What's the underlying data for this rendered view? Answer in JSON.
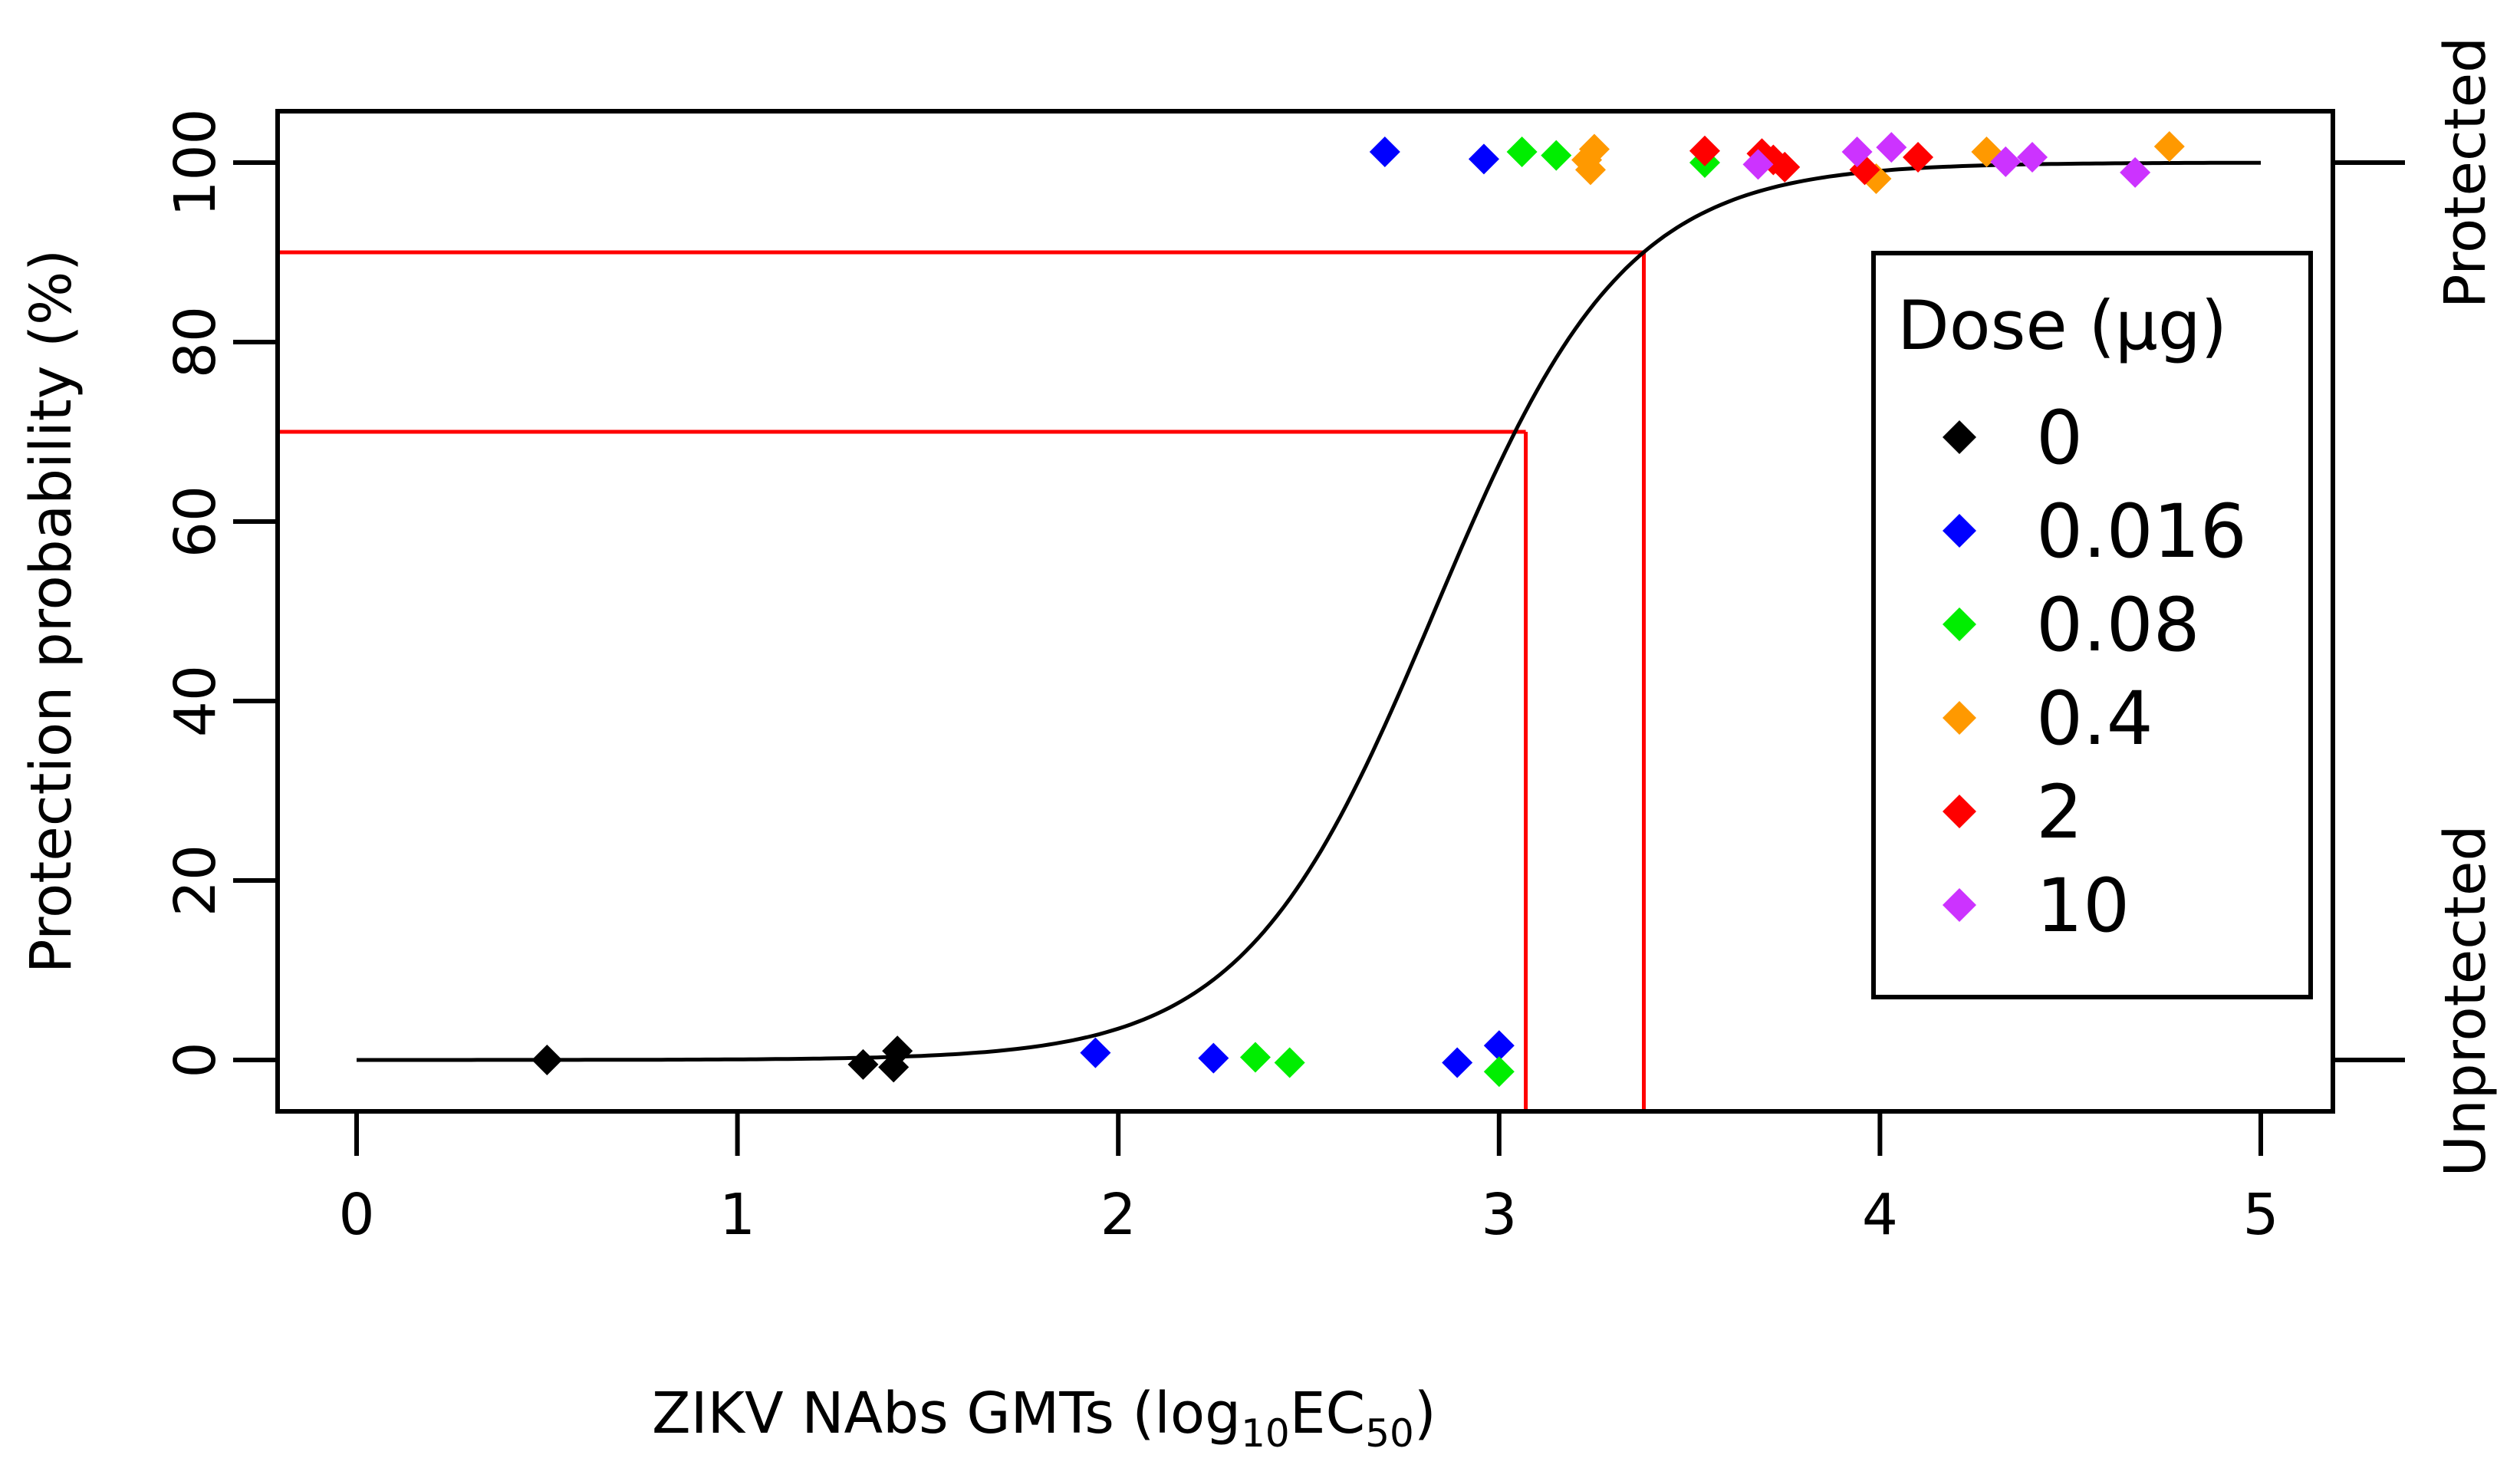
{
  "chart_data": {
    "type": "scatter",
    "title": "",
    "xlabel": "ZIKV NAbs GMTs (log",
    "xlabel_sub1": "10",
    "xlabel_mid": "EC",
    "xlabel_sub2": "50",
    "xlabel_end": ")",
    "ylabel": "Protection probability (%)",
    "xlim": [
      -0.2,
      5.2
    ],
    "ylim": [
      -6,
      106
    ],
    "xticks": [
      0,
      1,
      2,
      3,
      4,
      5
    ],
    "yticks": [
      0,
      20,
      40,
      60,
      80,
      100
    ],
    "right_labels": {
      "top": "Protected",
      "bottom": "Unprotected"
    },
    "legend": {
      "title": "Dose (µg)",
      "position": "right"
    },
    "fit_curve": {
      "type": "logistic",
      "x_range": [
        0,
        5
      ],
      "midpoint": 2.83,
      "slope_scale": 0.25
    },
    "thresholds": [
      {
        "prob": 70,
        "x": 3.07
      },
      {
        "prob": 90,
        "x": 3.38
      }
    ],
    "series": [
      {
        "name": "0",
        "color": "#000000",
        "points": [
          [
            0.5,
            0.0
          ],
          [
            1.33,
            -0.5
          ],
          [
            1.42,
            1.0
          ],
          [
            1.41,
            -0.8
          ]
        ]
      },
      {
        "name": "0.016",
        "color": "#0000ff",
        "points": [
          [
            1.94,
            0.8
          ],
          [
            2.25,
            0.2
          ],
          [
            2.89,
            -0.3
          ],
          [
            3.0,
            1.6
          ],
          [
            2.7,
            101.2
          ],
          [
            2.96,
            100.4
          ]
        ]
      },
      {
        "name": "0.08",
        "color": "#00ee00",
        "points": [
          [
            2.36,
            0.3
          ],
          [
            2.45,
            -0.3
          ],
          [
            3.0,
            -1.3
          ],
          [
            3.06,
            101.2
          ],
          [
            3.15,
            100.8
          ],
          [
            3.54,
            100.0
          ]
        ]
      },
      {
        "name": "0.4",
        "color": "#ff9900",
        "points": [
          [
            3.25,
            101.5
          ],
          [
            3.23,
            100.3
          ],
          [
            3.24,
            99.2
          ],
          [
            3.99,
            98.2
          ],
          [
            4.28,
            101.2
          ],
          [
            4.76,
            101.8
          ]
        ]
      },
      {
        "name": "2",
        "color": "#ff0000",
        "points": [
          [
            3.54,
            101.3
          ],
          [
            3.69,
            101.0
          ],
          [
            3.72,
            100.3
          ],
          [
            3.75,
            99.5
          ],
          [
            3.96,
            99.2
          ],
          [
            4.1,
            100.6
          ]
        ]
      },
      {
        "name": "10",
        "color": "#cc33ff",
        "points": [
          [
            3.68,
            99.8
          ],
          [
            3.94,
            101.2
          ],
          [
            4.03,
            101.7
          ],
          [
            4.33,
            100.1
          ],
          [
            4.4,
            100.6
          ],
          [
            4.67,
            98.9
          ]
        ]
      }
    ]
  }
}
